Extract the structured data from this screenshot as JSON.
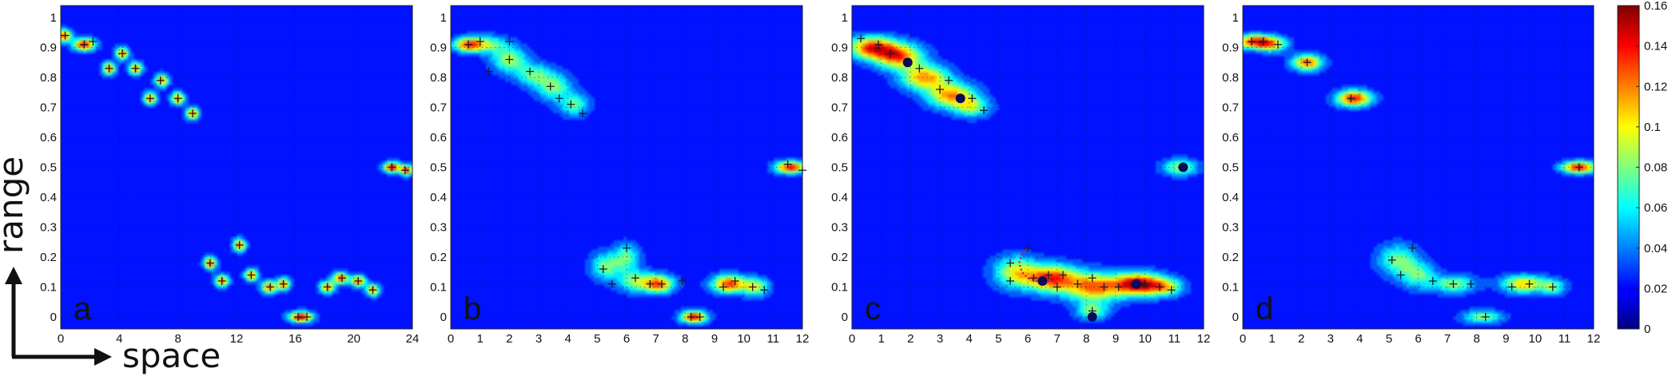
{
  "axis_words": {
    "y": "range",
    "x": "space"
  },
  "chart_data": {
    "type": "heatmap",
    "colormap": "jet",
    "colorbar": {
      "min": 0,
      "max": 0.16,
      "ticks": [
        "0",
        "0.02",
        "0.04",
        "0.06",
        "0.08",
        "0.1",
        "0.12",
        "0.14",
        "0.16"
      ]
    },
    "panels": [
      {
        "label": "a",
        "xlim": [
          0,
          24
        ],
        "ylim": [
          -0.04,
          1.04
        ],
        "xticks": [
          "0",
          "4",
          "8",
          "12",
          "16",
          "20",
          "24"
        ],
        "yticks": [
          "0",
          "0.1",
          "0.2",
          "0.3",
          "0.4",
          "0.5",
          "0.6",
          "0.7",
          "0.8",
          "0.9",
          "1"
        ],
        "blobs": [
          {
            "x": 0.2,
            "y": 0.94,
            "sx": 0.35,
            "sy": 0.014,
            "a": 0.13
          },
          {
            "x": 1.6,
            "y": 0.91,
            "sx": 0.5,
            "sy": 0.014,
            "a": 0.14
          },
          {
            "x": 3.3,
            "y": 0.83,
            "sx": 0.3,
            "sy": 0.014,
            "a": 0.12
          },
          {
            "x": 4.2,
            "y": 0.88,
            "sx": 0.3,
            "sy": 0.014,
            "a": 0.12
          },
          {
            "x": 5.1,
            "y": 0.83,
            "sx": 0.3,
            "sy": 0.014,
            "a": 0.12
          },
          {
            "x": 6.1,
            "y": 0.73,
            "sx": 0.3,
            "sy": 0.014,
            "a": 0.12
          },
          {
            "x": 6.9,
            "y": 0.79,
            "sx": 0.3,
            "sy": 0.014,
            "a": 0.12
          },
          {
            "x": 8.0,
            "y": 0.73,
            "sx": 0.3,
            "sy": 0.014,
            "a": 0.12
          },
          {
            "x": 9.0,
            "y": 0.68,
            "sx": 0.3,
            "sy": 0.014,
            "a": 0.12
          },
          {
            "x": 22.6,
            "y": 0.5,
            "sx": 0.4,
            "sy": 0.012,
            "a": 0.14
          },
          {
            "x": 23.6,
            "y": 0.49,
            "sx": 0.3,
            "sy": 0.012,
            "a": 0.13
          },
          {
            "x": 10.2,
            "y": 0.18,
            "sx": 0.3,
            "sy": 0.014,
            "a": 0.12
          },
          {
            "x": 11.0,
            "y": 0.12,
            "sx": 0.3,
            "sy": 0.014,
            "a": 0.12
          },
          {
            "x": 12.2,
            "y": 0.24,
            "sx": 0.3,
            "sy": 0.014,
            "a": 0.12
          },
          {
            "x": 13.0,
            "y": 0.14,
            "sx": 0.3,
            "sy": 0.014,
            "a": 0.12
          },
          {
            "x": 14.2,
            "y": 0.1,
            "sx": 0.35,
            "sy": 0.014,
            "a": 0.12
          },
          {
            "x": 15.2,
            "y": 0.11,
            "sx": 0.3,
            "sy": 0.014,
            "a": 0.12
          },
          {
            "x": 16.4,
            "y": 0.0,
            "sx": 0.55,
            "sy": 0.012,
            "a": 0.15
          },
          {
            "x": 18.2,
            "y": 0.1,
            "sx": 0.35,
            "sy": 0.013,
            "a": 0.12
          },
          {
            "x": 19.1,
            "y": 0.13,
            "sx": 0.35,
            "sy": 0.013,
            "a": 0.13
          },
          {
            "x": 20.3,
            "y": 0.12,
            "sx": 0.35,
            "sy": 0.013,
            "a": 0.12
          },
          {
            "x": 21.3,
            "y": 0.09,
            "sx": 0.3,
            "sy": 0.013,
            "a": 0.12
          }
        ],
        "crosses": [
          [
            0.3,
            0.94
          ],
          [
            1.6,
            0.91
          ],
          [
            2.2,
            0.92
          ],
          [
            3.3,
            0.83
          ],
          [
            4.2,
            0.88
          ],
          [
            5.1,
            0.83
          ],
          [
            6.1,
            0.73
          ],
          [
            6.8,
            0.79
          ],
          [
            8.0,
            0.73
          ],
          [
            9.0,
            0.68
          ],
          [
            22.6,
            0.5
          ],
          [
            23.5,
            0.49
          ],
          [
            10.2,
            0.18
          ],
          [
            11.0,
            0.12
          ],
          [
            12.2,
            0.24
          ],
          [
            13.0,
            0.14
          ],
          [
            14.3,
            0.1
          ],
          [
            15.2,
            0.11
          ],
          [
            16.2,
            0.0
          ],
          [
            16.8,
            0.0
          ],
          [
            18.2,
            0.1
          ],
          [
            19.2,
            0.13
          ],
          [
            20.3,
            0.12
          ],
          [
            21.3,
            0.09
          ]
        ],
        "dots": [],
        "path": []
      },
      {
        "label": "b",
        "xlim": [
          0,
          12
        ],
        "ylim": [
          -0.04,
          1.04
        ],
        "xticks": [
          "0",
          "1",
          "2",
          "3",
          "4",
          "5",
          "6",
          "7",
          "8",
          "9",
          "10",
          "11",
          "12"
        ],
        "yticks": [
          "0",
          "0.1",
          "0.2",
          "0.3",
          "0.4",
          "0.5",
          "0.6",
          "0.7",
          "0.8",
          "0.9",
          "1"
        ],
        "blobs": [
          {
            "x": 0.6,
            "y": 0.91,
            "sx": 0.35,
            "sy": 0.016,
            "a": 0.12
          },
          {
            "x": 1.3,
            "y": 0.91,
            "sx": 0.45,
            "sy": 0.02,
            "a": 0.06
          },
          {
            "x": 2.0,
            "y": 0.86,
            "sx": 0.4,
            "sy": 0.028,
            "a": 0.075
          },
          {
            "x": 2.8,
            "y": 0.81,
            "sx": 0.4,
            "sy": 0.025,
            "a": 0.06
          },
          {
            "x": 3.5,
            "y": 0.77,
            "sx": 0.4,
            "sy": 0.03,
            "a": 0.07
          },
          {
            "x": 4.2,
            "y": 0.71,
            "sx": 0.35,
            "sy": 0.025,
            "a": 0.06
          },
          {
            "x": 11.6,
            "y": 0.5,
            "sx": 0.35,
            "sy": 0.014,
            "a": 0.14
          },
          {
            "x": 5.3,
            "y": 0.17,
            "sx": 0.35,
            "sy": 0.03,
            "a": 0.065
          },
          {
            "x": 6.0,
            "y": 0.2,
            "sx": 0.3,
            "sy": 0.03,
            "a": 0.06
          },
          {
            "x": 6.3,
            "y": 0.12,
            "sx": 0.4,
            "sy": 0.025,
            "a": 0.07
          },
          {
            "x": 7.1,
            "y": 0.11,
            "sx": 0.35,
            "sy": 0.02,
            "a": 0.12
          },
          {
            "x": 9.5,
            "y": 0.11,
            "sx": 0.4,
            "sy": 0.02,
            "a": 0.13
          },
          {
            "x": 10.4,
            "y": 0.1,
            "sx": 0.3,
            "sy": 0.02,
            "a": 0.08
          },
          {
            "x": 8.3,
            "y": 0.0,
            "sx": 0.3,
            "sy": 0.014,
            "a": 0.14
          }
        ],
        "crosses": [
          [
            0.6,
            0.91
          ],
          [
            1.0,
            0.92
          ],
          [
            2.0,
            0.86
          ],
          [
            1.3,
            0.82
          ],
          [
            2.7,
            0.82
          ],
          [
            3.4,
            0.77
          ],
          [
            3.7,
            0.73
          ],
          [
            4.1,
            0.71
          ],
          [
            4.5,
            0.68
          ],
          [
            2.0,
            0.92
          ],
          [
            11.5,
            0.51
          ],
          [
            12.0,
            0.49
          ],
          [
            5.2,
            0.16
          ],
          [
            6.0,
            0.23
          ],
          [
            6.3,
            0.13
          ],
          [
            5.5,
            0.11
          ],
          [
            6.8,
            0.11
          ],
          [
            7.2,
            0.11
          ],
          [
            7.9,
            0.12
          ],
          [
            9.3,
            0.1
          ],
          [
            9.7,
            0.12
          ],
          [
            10.3,
            0.1
          ],
          [
            10.7,
            0.09
          ],
          [
            8.2,
            0.0
          ],
          [
            8.5,
            0.0
          ]
        ],
        "dots": [],
        "path": []
      },
      {
        "label": "c",
        "xlim": [
          0,
          12
        ],
        "ylim": [
          -0.04,
          1.04
        ],
        "xticks": [
          "0",
          "1",
          "2",
          "3",
          "4",
          "5",
          "6",
          "7",
          "8",
          "9",
          "10",
          "11",
          "12"
        ],
        "yticks": [
          "0",
          "0.1",
          "0.2",
          "0.3",
          "0.4",
          "0.5",
          "0.6",
          "0.7",
          "0.8",
          "0.9",
          "1"
        ],
        "blobs": [
          {
            "x": 0.7,
            "y": 0.9,
            "sx": 0.55,
            "sy": 0.025,
            "a": 0.13
          },
          {
            "x": 1.6,
            "y": 0.87,
            "sx": 0.55,
            "sy": 0.028,
            "a": 0.12
          },
          {
            "x": 2.5,
            "y": 0.8,
            "sx": 0.55,
            "sy": 0.028,
            "a": 0.11
          },
          {
            "x": 3.4,
            "y": 0.74,
            "sx": 0.55,
            "sy": 0.028,
            "a": 0.11
          },
          {
            "x": 4.1,
            "y": 0.7,
            "sx": 0.4,
            "sy": 0.022,
            "a": 0.07
          },
          {
            "x": 11.2,
            "y": 0.5,
            "sx": 0.4,
            "sy": 0.018,
            "a": 0.075
          },
          {
            "x": 5.6,
            "y": 0.15,
            "sx": 0.5,
            "sy": 0.035,
            "a": 0.085
          },
          {
            "x": 6.8,
            "y": 0.13,
            "sx": 0.6,
            "sy": 0.03,
            "a": 0.13
          },
          {
            "x": 8.3,
            "y": 0.1,
            "sx": 0.7,
            "sy": 0.032,
            "a": 0.12
          },
          {
            "x": 9.8,
            "y": 0.11,
            "sx": 0.55,
            "sy": 0.025,
            "a": 0.15
          },
          {
            "x": 10.7,
            "y": 0.1,
            "sx": 0.4,
            "sy": 0.02,
            "a": 0.08
          },
          {
            "x": 8.2,
            "y": 0.02,
            "sx": 0.35,
            "sy": 0.02,
            "a": 0.07
          }
        ],
        "crosses": [
          [
            0.3,
            0.93
          ],
          [
            0.9,
            0.91
          ],
          [
            1.3,
            0.88
          ],
          [
            2.3,
            0.83
          ],
          [
            3.0,
            0.76
          ],
          [
            3.3,
            0.79
          ],
          [
            4.1,
            0.73
          ],
          [
            4.5,
            0.69
          ],
          [
            11.3,
            0.5
          ],
          [
            5.4,
            0.18
          ],
          [
            6.0,
            0.23
          ],
          [
            6.2,
            0.13
          ],
          [
            7.2,
            0.14
          ],
          [
            7.7,
            0.11
          ],
          [
            8.2,
            0.13
          ],
          [
            8.6,
            0.1
          ],
          [
            9.1,
            0.1
          ],
          [
            10.0,
            0.11
          ],
          [
            10.5,
            0.1
          ],
          [
            10.9,
            0.09
          ],
          [
            8.2,
            0.02
          ],
          [
            7.0,
            0.1
          ],
          [
            6.7,
            0.14
          ],
          [
            5.4,
            0.12
          ]
        ],
        "dots": [
          [
            1.9,
            0.85
          ],
          [
            3.7,
            0.73
          ],
          [
            11.3,
            0.5
          ],
          [
            6.5,
            0.12
          ],
          [
            9.7,
            0.11
          ],
          [
            8.2,
            0.0
          ]
        ],
        "path": [
          [
            6.0,
            0.23
          ],
          [
            5.8,
            0.21
          ],
          [
            5.7,
            0.18
          ],
          [
            5.8,
            0.15
          ],
          [
            6.0,
            0.13
          ],
          [
            6.3,
            0.12
          ],
          [
            6.6,
            0.12
          ],
          [
            6.9,
            0.12
          ]
        ]
      },
      {
        "label": "d",
        "xlim": [
          0,
          12
        ],
        "ylim": [
          -0.04,
          1.04
        ],
        "xticks": [
          "0",
          "1",
          "2",
          "3",
          "4",
          "5",
          "6",
          "7",
          "8",
          "9",
          "10",
          "11",
          "12"
        ],
        "yticks": [
          "0",
          "0.1",
          "0.2",
          "0.3",
          "0.4",
          "0.5",
          "0.6",
          "0.7",
          "0.8",
          "0.9",
          "1"
        ],
        "blobs": [
          {
            "x": 0.4,
            "y": 0.92,
            "sx": 0.45,
            "sy": 0.016,
            "a": 0.13
          },
          {
            "x": 1.0,
            "y": 0.91,
            "sx": 0.35,
            "sy": 0.016,
            "a": 0.08
          },
          {
            "x": 2.2,
            "y": 0.85,
            "sx": 0.35,
            "sy": 0.018,
            "a": 0.12
          },
          {
            "x": 3.8,
            "y": 0.73,
            "sx": 0.4,
            "sy": 0.018,
            "a": 0.14
          },
          {
            "x": 11.5,
            "y": 0.5,
            "sx": 0.4,
            "sy": 0.014,
            "a": 0.14
          },
          {
            "x": 5.3,
            "y": 0.19,
            "sx": 0.45,
            "sy": 0.035,
            "a": 0.065
          },
          {
            "x": 6.0,
            "y": 0.14,
            "sx": 0.4,
            "sy": 0.03,
            "a": 0.06
          },
          {
            "x": 7.2,
            "y": 0.11,
            "sx": 0.5,
            "sy": 0.02,
            "a": 0.07
          },
          {
            "x": 9.6,
            "y": 0.11,
            "sx": 0.5,
            "sy": 0.02,
            "a": 0.1
          },
          {
            "x": 10.6,
            "y": 0.1,
            "sx": 0.3,
            "sy": 0.018,
            "a": 0.06
          },
          {
            "x": 8.2,
            "y": 0.0,
            "sx": 0.45,
            "sy": 0.015,
            "a": 0.07
          }
        ],
        "crosses": [
          [
            0.3,
            0.92
          ],
          [
            0.7,
            0.92
          ],
          [
            1.2,
            0.91
          ],
          [
            2.2,
            0.85
          ],
          [
            3.7,
            0.73
          ],
          [
            11.5,
            0.5
          ],
          [
            5.1,
            0.19
          ],
          [
            5.8,
            0.23
          ],
          [
            5.4,
            0.14
          ],
          [
            6.5,
            0.12
          ],
          [
            7.2,
            0.11
          ],
          [
            7.8,
            0.11
          ],
          [
            9.2,
            0.1
          ],
          [
            9.8,
            0.11
          ],
          [
            10.6,
            0.1
          ],
          [
            8.3,
            0.0
          ]
        ],
        "dots": [],
        "path": []
      }
    ]
  }
}
